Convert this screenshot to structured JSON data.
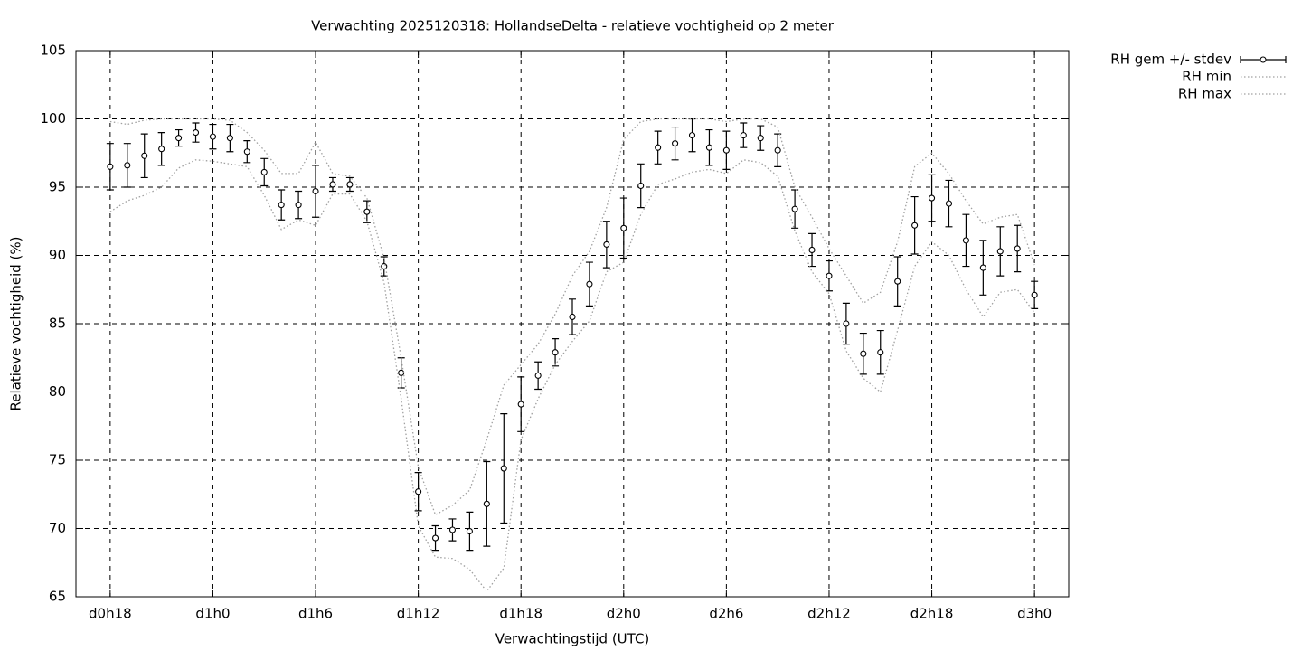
{
  "chart_data": {
    "type": "errorbar",
    "title": "Verwachting 2025120318: HollandseDelta - relatieve vochtigheid op 2 meter",
    "xlabel": "Verwachtingstijd (UTC)",
    "ylabel": "Relatieve vochtigheid (%)",
    "x": [
      0,
      1,
      2,
      3,
      4,
      5,
      6,
      7,
      8,
      9,
      10,
      11,
      12,
      13,
      14,
      15,
      16,
      17,
      18,
      19,
      20,
      21,
      22,
      23,
      24,
      25,
      26,
      27,
      28,
      29,
      30,
      31,
      32,
      33,
      34,
      35,
      36,
      37,
      38,
      39,
      40,
      41,
      42,
      43,
      44,
      45,
      46,
      47,
      48,
      49,
      50,
      51,
      52,
      53,
      54
    ],
    "series": [
      {
        "name": "RH gem +/- stdev",
        "color": "#000000",
        "style": "errorbar",
        "values": [
          96.5,
          96.6,
          97.3,
          97.8,
          98.6,
          99.0,
          98.7,
          98.6,
          97.6,
          96.1,
          93.7,
          93.7,
          94.7,
          95.2,
          95.2,
          93.2,
          89.2,
          81.4,
          72.7,
          69.3,
          69.9,
          69.8,
          71.8,
          74.4,
          79.1,
          81.2,
          82.9,
          85.5,
          87.9,
          90.8,
          92.0,
          95.1,
          97.9,
          98.2,
          98.8,
          97.9,
          97.7,
          98.8,
          98.6,
          97.7,
          93.4,
          90.4,
          88.5,
          85.0,
          82.8,
          82.9,
          88.1,
          92.2,
          94.2,
          93.8,
          91.1,
          89.1,
          90.3,
          90.5,
          87.1
        ],
        "errors": [
          1.7,
          1.6,
          1.6,
          1.2,
          0.6,
          0.7,
          0.9,
          1.0,
          0.8,
          1.0,
          1.1,
          1.0,
          1.9,
          0.5,
          0.5,
          0.8,
          0.7,
          1.1,
          1.4,
          0.9,
          0.8,
          1.4,
          3.1,
          4.0,
          2.0,
          1.0,
          1.0,
          1.3,
          1.6,
          1.7,
          2.2,
          1.6,
          1.2,
          1.2,
          1.2,
          1.3,
          1.4,
          0.9,
          0.9,
          1.2,
          1.4,
          1.2,
          1.1,
          1.5,
          1.5,
          1.6,
          1.8,
          2.1,
          1.7,
          1.7,
          1.9,
          2.0,
          1.8,
          1.7,
          1.0
        ]
      },
      {
        "name": "RH min",
        "color": "#a0a0a0",
        "style": "dotted",
        "values": [
          93.2,
          94.0,
          94.4,
          95.0,
          96.4,
          97.0,
          96.9,
          96.7,
          96.5,
          94.4,
          91.9,
          92.6,
          92.2,
          94.5,
          94.5,
          92.5,
          88.0,
          79.5,
          70.2,
          67.9,
          67.8,
          67.0,
          65.4,
          67.1,
          76.5,
          79.5,
          82.0,
          83.7,
          85.2,
          88.8,
          89.5,
          93.0,
          95.2,
          95.6,
          96.1,
          96.3,
          96.0,
          97.0,
          96.8,
          95.8,
          91.8,
          88.8,
          87.2,
          83.0,
          81.0,
          80.0,
          84.5,
          89.2,
          91.0,
          90.0,
          87.5,
          85.5,
          87.3,
          87.5,
          85.8
        ]
      },
      {
        "name": "RH max",
        "color": "#a0a0a0",
        "style": "dotted",
        "values": [
          99.8,
          99.6,
          99.9,
          100,
          100,
          100,
          100,
          99.9,
          99.0,
          97.7,
          96.0,
          96.0,
          98.3,
          96.0,
          95.8,
          94.2,
          89.8,
          82.5,
          74.5,
          71.0,
          71.7,
          72.8,
          76.5,
          80.5,
          82.0,
          83.5,
          85.7,
          88.5,
          90.3,
          93.5,
          98.5,
          99.8,
          100,
          100,
          100,
          100,
          99.8,
          100,
          100,
          99.4,
          95.0,
          92.8,
          90.5,
          88.5,
          86.5,
          87.3,
          91.0,
          96.5,
          97.5,
          96.0,
          94.0,
          92.3,
          92.8,
          93.0,
          89.3
        ]
      }
    ],
    "xlim": [
      -2,
      56
    ],
    "xticks": [
      {
        "value": 0,
        "label": "d0h18"
      },
      {
        "value": 6,
        "label": "d1h0"
      },
      {
        "value": 12,
        "label": "d1h6"
      },
      {
        "value": 18,
        "label": "d1h12"
      },
      {
        "value": 24,
        "label": "d1h18"
      },
      {
        "value": 30,
        "label": "d2h0"
      },
      {
        "value": 36,
        "label": "d2h6"
      },
      {
        "value": 42,
        "label": "d2h12"
      },
      {
        "value": 48,
        "label": "d2h18"
      },
      {
        "value": 54,
        "label": "d3h0"
      }
    ],
    "ylim": [
      65,
      105
    ],
    "yticks": [
      65,
      70,
      75,
      80,
      85,
      90,
      95,
      100,
      105
    ],
    "grid": true,
    "legend": "outside-top-right"
  }
}
